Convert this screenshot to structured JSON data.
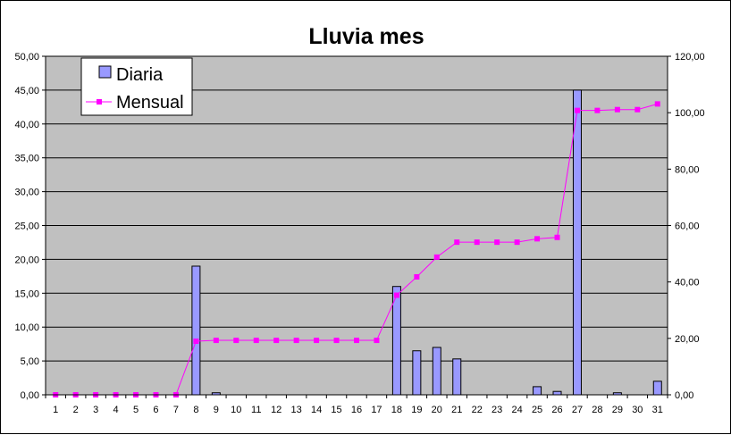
{
  "chart_data": {
    "type": "bar",
    "title": "Lluvia mes",
    "xlabel": "",
    "ylabel": "",
    "categories": [
      "1",
      "2",
      "3",
      "4",
      "5",
      "6",
      "7",
      "8",
      "9",
      "10",
      "11",
      "12",
      "13",
      "14",
      "15",
      "16",
      "17",
      "18",
      "19",
      "20",
      "21",
      "22",
      "23",
      "24",
      "25",
      "26",
      "27",
      "28",
      "29",
      "30",
      "31"
    ],
    "ylim": [
      0,
      50
    ],
    "y_ticks": [
      "0,00",
      "5,00",
      "10,00",
      "15,00",
      "20,00",
      "25,00",
      "30,00",
      "35,00",
      "40,00",
      "45,00",
      "50,00"
    ],
    "y2lim": [
      0,
      120
    ],
    "y2_ticks": [
      "0,00",
      "20,00",
      "40,00",
      "60,00",
      "80,00",
      "100,00",
      "120,00"
    ],
    "grid": true,
    "legend_position": "top-left",
    "series": [
      {
        "name": "Diaria",
        "type": "bar",
        "axis": "left",
        "color": "#9999ff",
        "values": [
          0,
          0,
          0,
          0,
          0,
          0,
          0,
          19,
          0.3,
          0,
          0,
          0,
          0,
          0,
          0,
          0,
          0,
          16,
          6.5,
          7,
          5.3,
          0,
          0,
          0,
          1.2,
          0.5,
          45,
          0,
          0.3,
          0,
          2
        ]
      },
      {
        "name": "Mensual",
        "type": "line",
        "axis": "right",
        "color": "#ff00ff",
        "values": [
          0,
          0,
          0,
          0,
          0,
          0,
          0,
          19,
          19.3,
          19.3,
          19.3,
          19.3,
          19.3,
          19.3,
          19.3,
          19.3,
          19.3,
          35.3,
          41.8,
          48.8,
          54.1,
          54.1,
          54.1,
          54.1,
          55.3,
          55.8,
          100.8,
          100.8,
          101.1,
          101.1,
          103.1
        ]
      }
    ],
    "plot_background": "#c0c0c0"
  }
}
